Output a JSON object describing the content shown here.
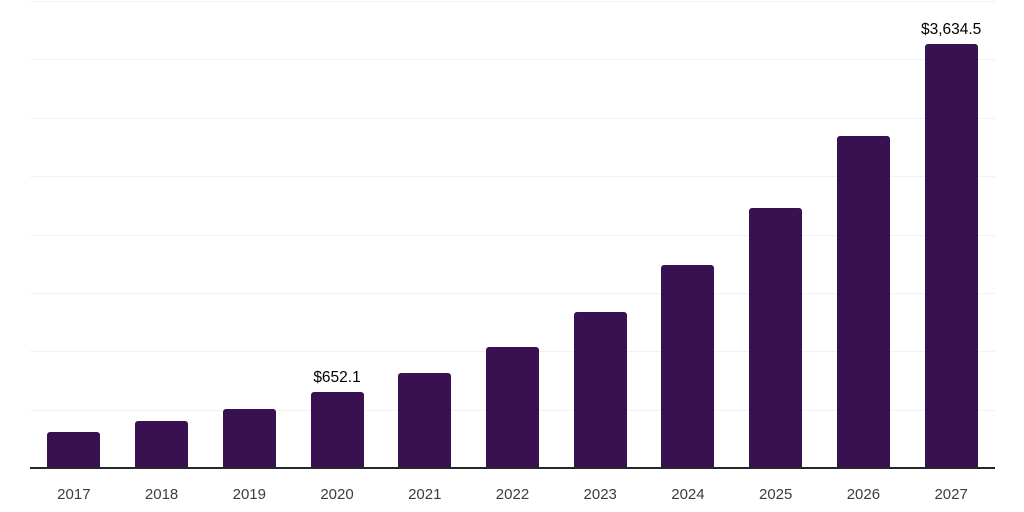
{
  "chart_data": {
    "type": "bar",
    "title": "",
    "xlabel": "",
    "ylabel": "",
    "categories": [
      "2017",
      "2018",
      "2019",
      "2020",
      "2021",
      "2022",
      "2023",
      "2024",
      "2025",
      "2026",
      "2027"
    ],
    "values": [
      312,
      400,
      505,
      652.1,
      815,
      1035,
      1335,
      1740,
      2225,
      2845,
      3634.5
    ],
    "data_labels": {
      "2020": "$652.1",
      "2027": "$3,634.5"
    },
    "ylim": [
      0,
      4000
    ],
    "gridline_interval": 500,
    "grid": true,
    "legend": false,
    "colors": {
      "bar": "#3a1150",
      "gridline": "#f2f2f4",
      "axis": "#262626",
      "tick_label": "#3d3d3d",
      "data_label": "#000000",
      "background": "#ffffff"
    }
  }
}
